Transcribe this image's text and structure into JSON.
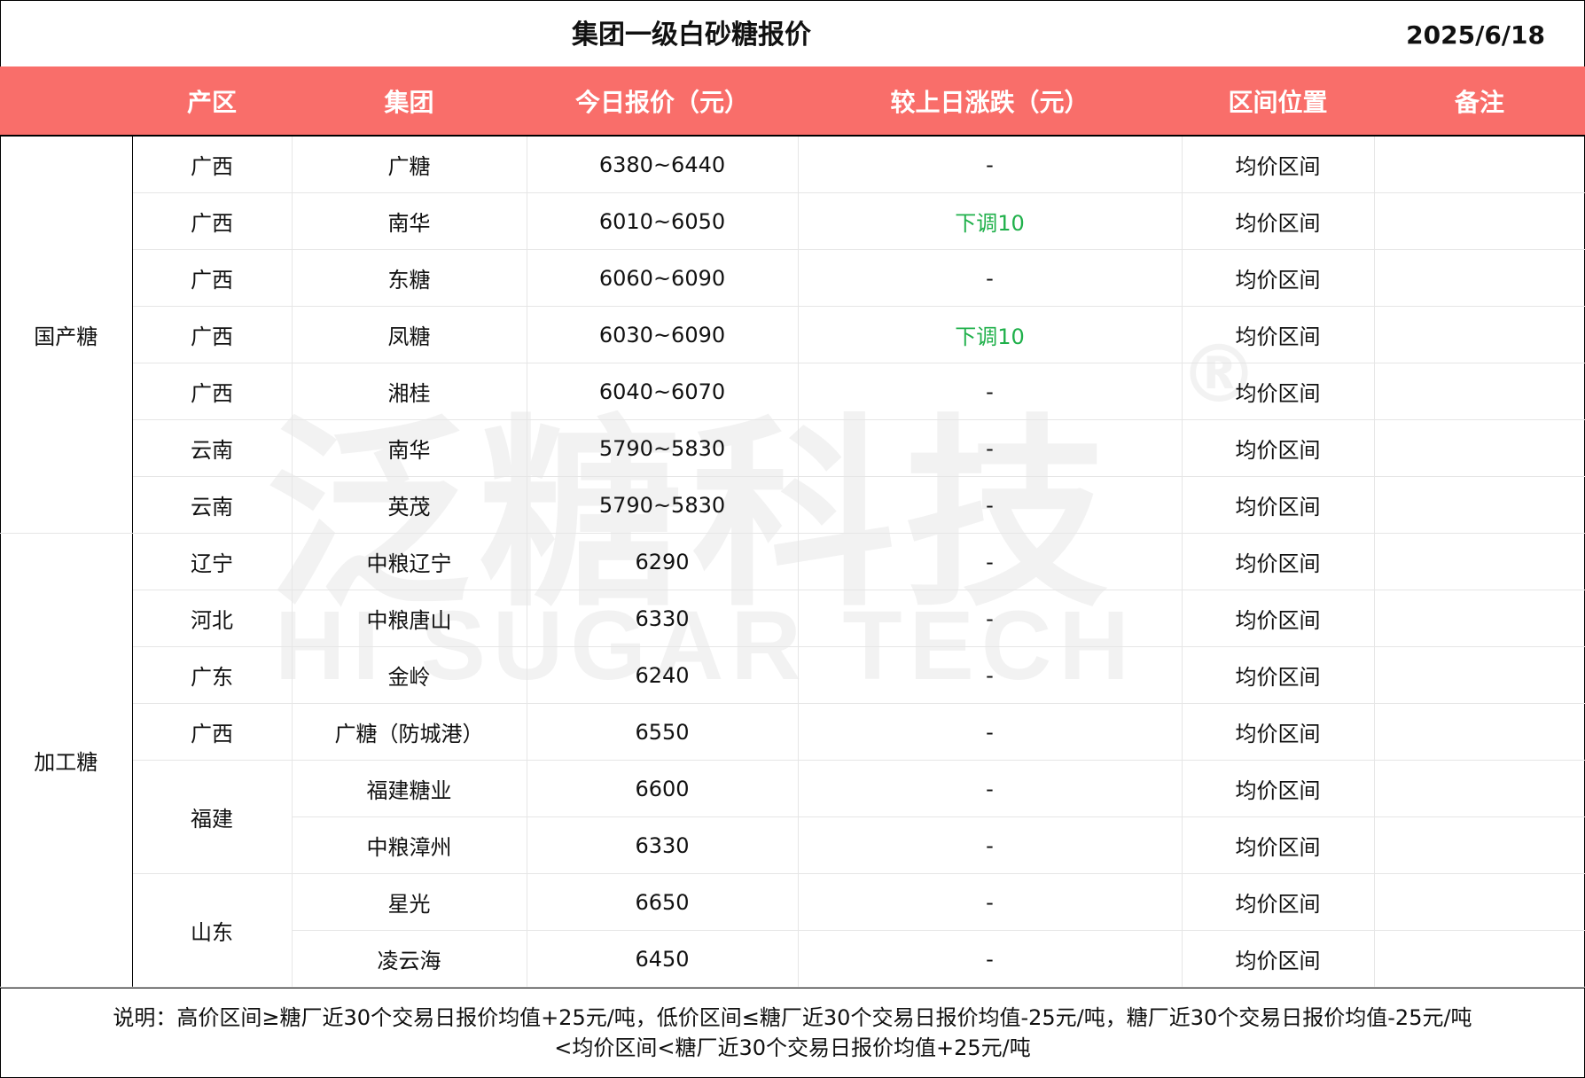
{
  "title": "集团一级白砂糖报价",
  "date": "2025/6/18",
  "headers": [
    "产区",
    "集团",
    "今日报价（元）",
    "较上日涨跌（元）",
    "区间位置",
    "备注"
  ],
  "colors": {
    "header_bg": "#f96e6a",
    "down": "#1fb04a"
  },
  "watermark": {
    "cn": "泛糖科技",
    "en": "HI SUGAR TECH",
    "reg": "®"
  },
  "groups": [
    {
      "category": "国产糖",
      "rows": [
        {
          "region": "广西",
          "group": "广糖",
          "price": "6380~6440",
          "change": "-",
          "position": "均价区间",
          "note": ""
        },
        {
          "region": "广西",
          "group": "南华",
          "price": "6010~6050",
          "change": "下调10",
          "position": "均价区间",
          "note": ""
        },
        {
          "region": "广西",
          "group": "东糖",
          "price": "6060~6090",
          "change": "-",
          "position": "均价区间",
          "note": ""
        },
        {
          "region": "广西",
          "group": "凤糖",
          "price": "6030~6090",
          "change": "下调10",
          "position": "均价区间",
          "note": ""
        },
        {
          "region": "广西",
          "group": "湘桂",
          "price": "6040~6070",
          "change": "-",
          "position": "均价区间",
          "note": ""
        },
        {
          "region": "云南",
          "group": "南华",
          "price": "5790~5830",
          "change": "-",
          "position": "均价区间",
          "note": ""
        },
        {
          "region": "云南",
          "group": "英茂",
          "price": "5790~5830",
          "change": "-",
          "position": "均价区间",
          "note": ""
        }
      ]
    },
    {
      "category": "加工糖",
      "rows": [
        {
          "region": "辽宁",
          "group": "中粮辽宁",
          "price": "6290",
          "change": "-",
          "position": "均价区间",
          "note": ""
        },
        {
          "region": "河北",
          "group": "中粮唐山",
          "price": "6330",
          "change": "-",
          "position": "均价区间",
          "note": ""
        },
        {
          "region": "广东",
          "group": "金岭",
          "price": "6240",
          "change": "-",
          "position": "均价区间",
          "note": ""
        },
        {
          "region": "广西",
          "group": "广糖（防城港）",
          "price": "6550",
          "change": "-",
          "position": "均价区间",
          "note": ""
        },
        {
          "region": "福建",
          "group": "福建糖业",
          "price": "6600",
          "change": "-",
          "position": "均价区间",
          "note": ""
        },
        {
          "region": "福建",
          "group": "中粮漳州",
          "price": "6330",
          "change": "-",
          "position": "均价区间",
          "note": ""
        },
        {
          "region": "山东",
          "group": "星光",
          "price": "6650",
          "change": "-",
          "position": "均价区间",
          "note": ""
        },
        {
          "region": "山东",
          "group": "凌云海",
          "price": "6450",
          "change": "-",
          "position": "均价区间",
          "note": ""
        }
      ]
    }
  ],
  "footer": {
    "line1": "说明：高价区间≥糖厂近30个交易日报价均值+25元/吨，低价区间≤糖厂近30个交易日报价均值-25元/吨，糖厂近30个交易日报价均值-25元/吨",
    "line2": "<均价区间<糖厂近30个交易日报价均值+25元/吨"
  }
}
